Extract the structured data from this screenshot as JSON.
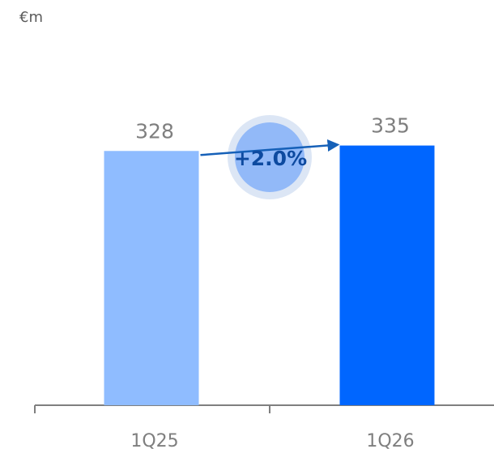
{
  "chart_data": {
    "type": "bar",
    "unit_label": "€m",
    "categories": [
      "1Q25",
      "1Q26"
    ],
    "values": [
      328,
      335
    ],
    "value_labels": [
      "328",
      "335"
    ],
    "bar_colors": [
      "#8fbcff",
      "#0066ff"
    ],
    "change_label": "+2.0%",
    "change_badge_color": "#92b9f8",
    "change_badge_ring_color": "#dce6f5",
    "change_text_color": "#0d4aa0",
    "arrow_color": "#1560b8",
    "axis_color": "#7f7f7f",
    "label_color": "#7f7f7f",
    "ylim": [
      0,
      345
    ]
  }
}
